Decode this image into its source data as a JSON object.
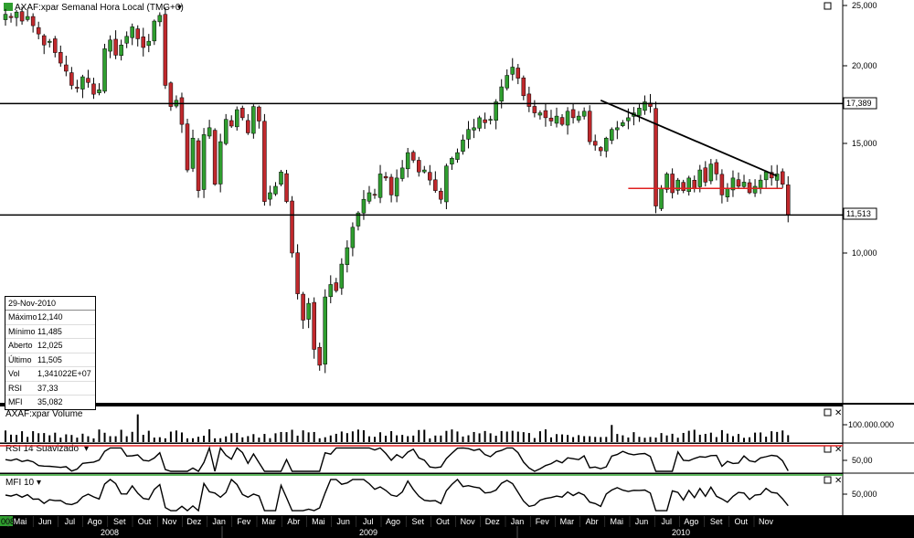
{
  "colors": {
    "up": "#2f9e2f",
    "down": "#c0282c",
    "panel_bg": "#ffffff",
    "axis_bg": "#000000",
    "rsi_upper": "#e02020",
    "rsi_lower": "#2aa02a",
    "support_red": "#e02020",
    "trend": "#000000"
  },
  "price_panel": {
    "title": "AXAF:xpar Semanal Hora Local (TMG+0)",
    "icon": "chart-badge-icon",
    "y_ticks": [
      "25,000",
      "20,000",
      "17,389",
      "15,000",
      "11,513",
      "10,000"
    ],
    "hlines": [
      17.389,
      11.513
    ]
  },
  "info_box": {
    "date": "29-Nov-2010",
    "rows": [
      {
        "label": "Máximo",
        "value": "12,140"
      },
      {
        "label": "Mínimo",
        "value": "11,485"
      },
      {
        "label": "Aberto",
        "value": "12,025"
      },
      {
        "label": "Último",
        "value": "11,505"
      },
      {
        "label": "Vol",
        "value": "1,341022E+07"
      },
      {
        "label": "RSI",
        "value": "37,33"
      },
      {
        "label": "MFI",
        "value": "35,082"
      }
    ]
  },
  "volume_panel": {
    "title": "AXAF:xpar Volume",
    "y_tick": "100.000.000"
  },
  "rsi_panel": {
    "title": "RSI 14 Suavizado",
    "y_tick": "50,00"
  },
  "mfi_panel": {
    "title": "MFI 10",
    "y_tick": "50,000"
  },
  "x_axis": {
    "months": [
      "Mai",
      "Jun",
      "Jul",
      "Ago",
      "Set",
      "Out",
      "Nov",
      "Dez",
      "Jan",
      "Fev",
      "Mar",
      "Abr",
      "Mai",
      "Jun",
      "Jul",
      "Ago",
      "Set",
      "Out",
      "Nov",
      "Dez",
      "Jan",
      "Fev",
      "Mar",
      "Abr",
      "Mai",
      "Jun",
      "Jul",
      "Ago",
      "Set",
      "Out",
      "Nov"
    ],
    "years": [
      "2008",
      "2009",
      "2010"
    ],
    "corner_label": "008"
  },
  "chart_data": {
    "type": "candlestick",
    "title": "AXAF:xpar Semanal Hora Local (TMG+0)",
    "ylim": [
      7.5,
      25
    ],
    "y_scale": "log",
    "close": [
      24.2,
      23.9,
      24.4,
      23.6,
      24.0,
      23.2,
      22.5,
      21.6,
      21.9,
      21.0,
      20.2,
      19.6,
      18.6,
      18.4,
      19.2,
      18.8,
      18.0,
      18.3,
      21.3,
      22.0,
      20.8,
      21.6,
      22.3,
      23.1,
      22.1,
      21.4,
      21.9,
      23.6,
      24.1,
      18.6,
      17.2,
      17.6,
      16.1,
      13.6,
      15.3,
      12.6,
      15.5,
      15.9,
      12.9,
      15.1,
      16.4,
      16.0,
      17.0,
      16.5,
      15.6,
      17.2,
      16.3,
      12.1,
      12.5,
      12.8,
      13.5,
      12.1,
      10.0,
      8.6,
      7.8,
      8.3,
      7.0,
      6.6,
      8.5,
      8.9,
      8.7,
      9.6,
      10.2,
      11.0,
      11.6,
      12.2,
      12.5,
      12.4,
      13.4,
      13.2,
      12.4,
      13.2,
      13.7,
      14.5,
      14.1,
      13.5,
      13.6,
      13.1,
      12.6,
      12.2,
      13.8,
      14.2,
      14.5,
      15.2,
      15.8,
      15.9,
      16.5,
      16.2,
      16.4,
      17.5,
      18.5,
      19.3,
      19.9,
      19.1,
      17.9,
      17.2,
      16.8,
      16.8,
      16.5,
      16.3,
      16.6,
      16.1,
      16.9,
      16.5,
      16.6,
      16.9,
      15.1,
      14.9,
      14.6,
      15.3,
      15.8,
      15.9,
      16.2,
      16.5,
      16.8,
      17.1,
      17.5,
      17.2,
      11.9,
      12.7,
      13.4,
      12.5,
      13.1,
      12.6,
      13.2,
      12.7,
      13.6,
      13.0,
      13.9,
      13.4,
      12.4,
      12.7,
      13.2,
      12.8,
      13.0,
      12.5,
      12.8,
      13.1,
      13.5,
      13.2,
      13.4,
      12.9,
      11.5
    ],
    "series": [
      {
        "name": "AXAF:xpar Volume",
        "type": "bar"
      },
      {
        "name": "RSI 14 Suavizado",
        "type": "line",
        "reference_lines": [
          70,
          30
        ]
      },
      {
        "name": "MFI 10",
        "type": "line"
      }
    ],
    "annotations": {
      "horizontal_levels": [
        17.389,
        11.513
      ],
      "trendline": "descending from Apr 2010 high to Nov 2010",
      "support_segment": 12.7
    }
  }
}
